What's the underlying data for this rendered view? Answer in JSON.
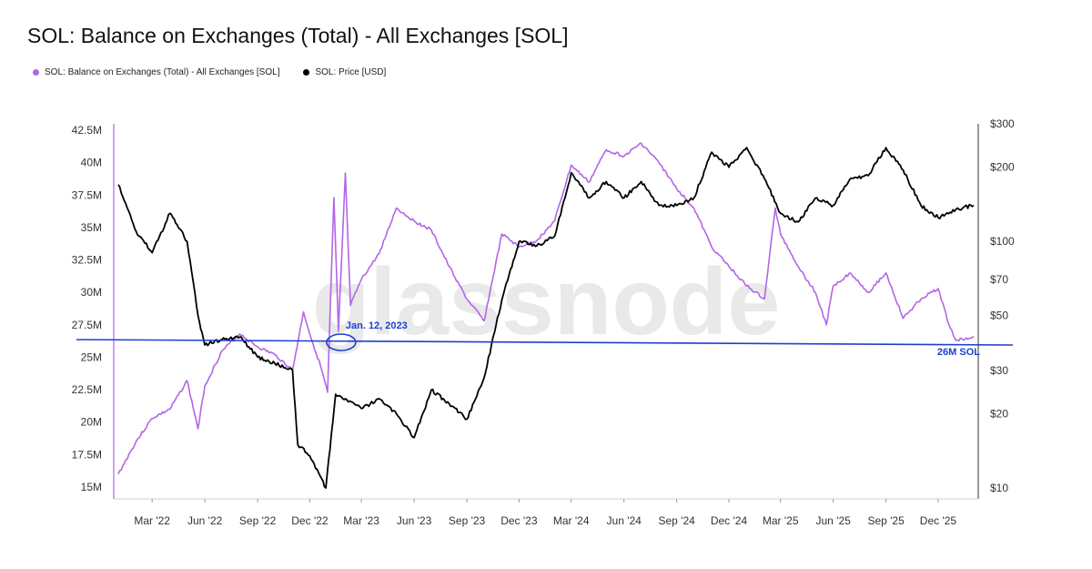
{
  "title": "SOL: Balance on Exchanges (Total) - All Exchanges [SOL]",
  "watermark": "glassnode",
  "legend": [
    {
      "label": "SOL: Balance on Exchanges (Total) - All Exchanges [SOL]",
      "color": "#b266e6"
    },
    {
      "label": "SOL: Price [USD]",
      "color": "#000000"
    }
  ],
  "chart_data": {
    "type": "line",
    "title": "SOL: Balance on Exchanges (Total) - All Exchanges [SOL]",
    "x_ticks": [
      "Mar '22",
      "Jun '22",
      "Sep '22",
      "Dec '22",
      "Mar '23",
      "Jun '23",
      "Sep '23",
      "Dec '23",
      "Mar '24",
      "Jun '24",
      "Sep '24",
      "Dec '24",
      "Mar '25",
      "Jun '25",
      "Sep '25",
      "Dec '25"
    ],
    "y_left_ticks": [
      "42.5M",
      "40M",
      "37.5M",
      "35M",
      "32.5M",
      "30M",
      "27.5M",
      "25M",
      "22.5M",
      "20M",
      "17.5M",
      "15M"
    ],
    "y_left_range": [
      15,
      42.5
    ],
    "y_right_ticks": [
      "$300",
      "$200",
      "$100",
      "$70",
      "$50",
      "$30",
      "$20",
      "$10"
    ],
    "y_right_scale": "log",
    "y_right_range": [
      10,
      300
    ],
    "x_range": [
      "2022-01",
      "2026-02"
    ],
    "series": [
      {
        "name": "SOL: Balance on Exchanges (Total) - All Exchanges [SOL]",
        "axis": "left",
        "color": "#b266e6",
        "unit": "M",
        "points": [
          [
            "2022-01",
            16.0
          ],
          [
            "2022-02",
            18.5
          ],
          [
            "2022-03",
            20.3
          ],
          [
            "2022-04",
            21.0
          ],
          [
            "2022-05",
            23.2
          ],
          [
            "2022-05-20",
            19.5
          ],
          [
            "2022-06",
            22.8
          ],
          [
            "2022-07",
            25.5
          ],
          [
            "2022-08",
            26.8
          ],
          [
            "2022-09",
            25.8
          ],
          [
            "2022-10",
            25.2
          ],
          [
            "2022-11",
            24.0
          ],
          [
            "2022-11-20",
            28.5
          ],
          [
            "2022-12",
            26.8
          ],
          [
            "2022-12-20",
            24.3
          ],
          [
            "2023-01",
            22.3
          ],
          [
            "2023-01-12",
            37.3
          ],
          [
            "2023-01-20",
            27.0
          ],
          [
            "2023-02",
            39.2
          ],
          [
            "2023-02-10",
            29.0
          ],
          [
            "2023-03",
            31.0
          ],
          [
            "2023-04",
            33.0
          ],
          [
            "2023-05",
            36.5
          ],
          [
            "2023-06",
            35.5
          ],
          [
            "2023-07",
            34.8
          ],
          [
            "2023-08",
            32.0
          ],
          [
            "2023-09",
            29.5
          ],
          [
            "2023-10",
            27.8
          ],
          [
            "2023-11",
            34.5
          ],
          [
            "2023-12",
            33.5
          ],
          [
            "2024-01",
            34.0
          ],
          [
            "2024-02",
            35.5
          ],
          [
            "2024-03",
            39.8
          ],
          [
            "2024-04",
            38.5
          ],
          [
            "2024-05",
            41.0
          ],
          [
            "2024-06",
            40.5
          ],
          [
            "2024-07",
            41.5
          ],
          [
            "2024-08",
            40.0
          ],
          [
            "2024-09",
            38.0
          ],
          [
            "2024-10",
            36.5
          ],
          [
            "2024-11",
            33.5
          ],
          [
            "2024-12",
            32.0
          ],
          [
            "2025-01",
            30.5
          ],
          [
            "2025-02",
            29.5
          ],
          [
            "2025-02-20",
            36.5
          ],
          [
            "2025-03",
            34.5
          ],
          [
            "2025-04",
            32.0
          ],
          [
            "2025-05",
            30.0
          ],
          [
            "2025-05-20",
            27.5
          ],
          [
            "2025-06",
            30.5
          ],
          [
            "2025-07",
            31.5
          ],
          [
            "2025-08",
            30.0
          ],
          [
            "2025-09",
            31.5
          ],
          [
            "2025-10",
            28.0
          ],
          [
            "2025-11",
            29.5
          ],
          [
            "2025-12",
            30.3
          ],
          [
            "2025-12-20",
            27.5
          ],
          [
            "2026-01",
            26.3
          ],
          [
            "2026-02",
            26.6
          ]
        ]
      },
      {
        "name": "SOL: Price [USD]",
        "axis": "right",
        "color": "#000000",
        "unit": "USD",
        "points": [
          [
            "2022-01",
            170
          ],
          [
            "2022-02",
            110
          ],
          [
            "2022-03",
            90
          ],
          [
            "2022-04",
            130
          ],
          [
            "2022-05",
            100
          ],
          [
            "2022-05-20",
            50
          ],
          [
            "2022-06",
            38
          ],
          [
            "2022-07",
            40
          ],
          [
            "2022-08",
            41
          ],
          [
            "2022-09",
            34
          ],
          [
            "2022-10",
            32
          ],
          [
            "2022-11",
            30
          ],
          [
            "2022-11-10",
            15
          ],
          [
            "2022-12",
            13.5
          ],
          [
            "2022-12-29",
            10
          ],
          [
            "2023-01-15",
            24
          ],
          [
            "2023-02",
            23
          ],
          [
            "2023-03",
            21
          ],
          [
            "2023-04",
            23
          ],
          [
            "2023-05",
            20
          ],
          [
            "2023-06",
            16
          ],
          [
            "2023-07",
            25
          ],
          [
            "2023-08",
            22
          ],
          [
            "2023-09",
            19
          ],
          [
            "2023-10",
            28
          ],
          [
            "2023-11",
            58
          ],
          [
            "2023-12",
            100
          ],
          [
            "2024-01",
            96
          ],
          [
            "2024-02",
            105
          ],
          [
            "2024-03",
            190
          ],
          [
            "2024-04",
            150
          ],
          [
            "2024-05",
            175
          ],
          [
            "2024-06",
            150
          ],
          [
            "2024-07",
            175
          ],
          [
            "2024-08",
            140
          ],
          [
            "2024-09",
            140
          ],
          [
            "2024-10",
            150
          ],
          [
            "2024-11",
            230
          ],
          [
            "2024-12",
            200
          ],
          [
            "2025-01",
            240
          ],
          [
            "2025-02",
            180
          ],
          [
            "2025-03",
            130
          ],
          [
            "2025-04",
            120
          ],
          [
            "2025-05",
            150
          ],
          [
            "2025-06",
            140
          ],
          [
            "2025-07",
            180
          ],
          [
            "2025-08",
            185
          ],
          [
            "2025-09",
            240
          ],
          [
            "2025-10",
            195
          ],
          [
            "2025-11",
            140
          ],
          [
            "2025-12",
            125
          ],
          [
            "2026-01",
            135
          ],
          [
            "2026-02",
            140
          ]
        ]
      }
    ],
    "annotations": [
      {
        "label": "Jan. 12, 2023",
        "x": "2023-01-12"
      },
      {
        "label": "26M SOL",
        "y": 26
      }
    ]
  }
}
